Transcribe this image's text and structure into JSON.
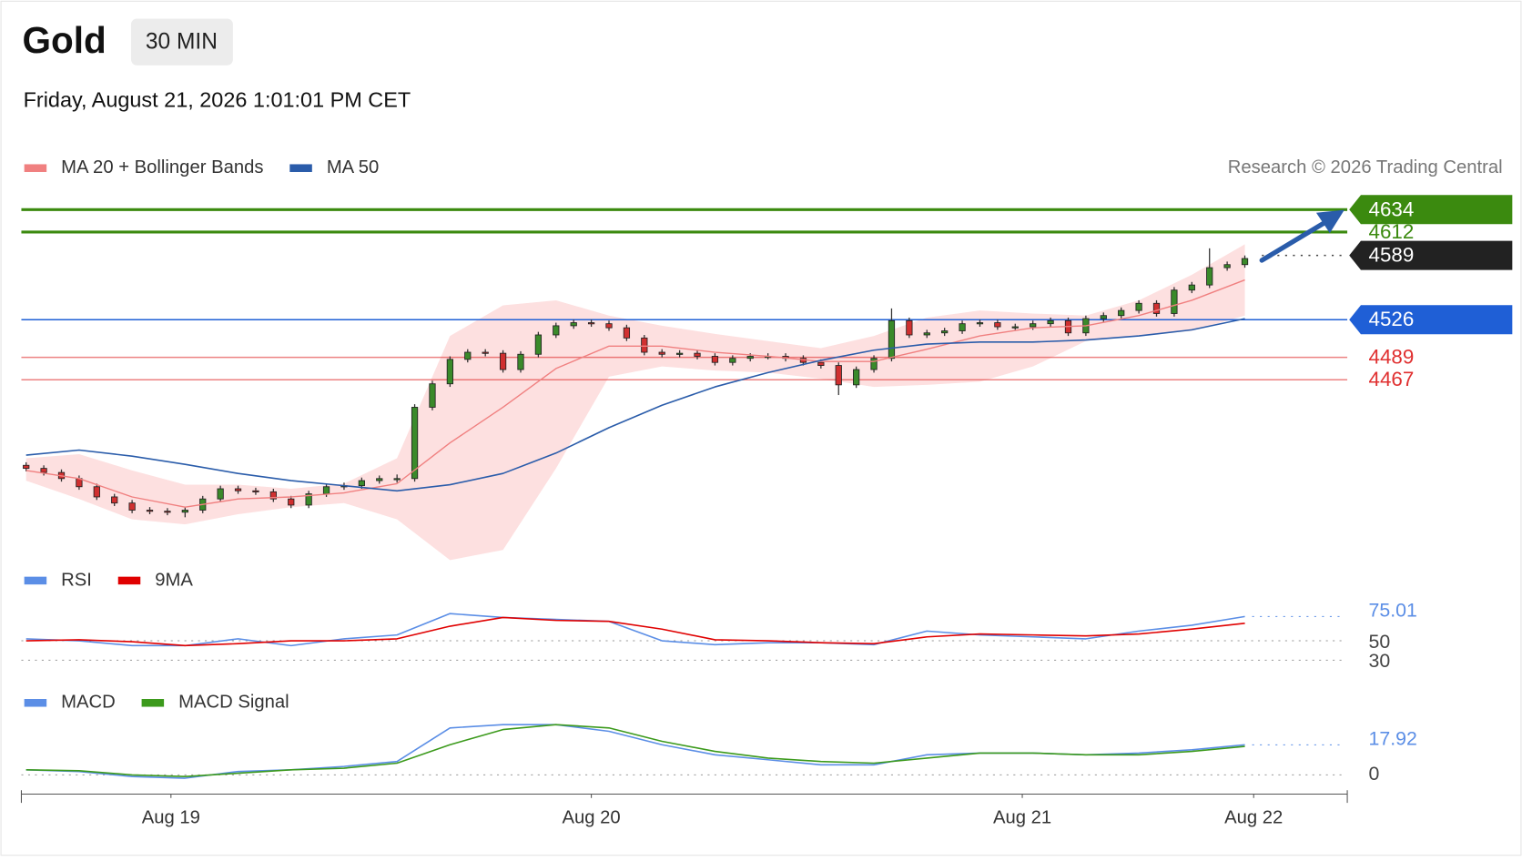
{
  "chart_data": [
    {
      "type": "candlestick",
      "title": "Gold",
      "timeframe": "30 MIN",
      "subtitle": "Friday, August 21, 2026 1:01:01 PM CET",
      "credit": "Research © 2026 Trading Central",
      "xlim": [
        -0.27,
        74.8
      ],
      "ylim": [
        4287,
        4649
      ],
      "xticks": [
        {
          "value": 8.2,
          "label": "Aug 19"
        },
        {
          "value": 32,
          "label": "Aug 20"
        },
        {
          "value": 56.4,
          "label": "Aug 21"
        },
        {
          "value": 69.5,
          "label": "Aug 22"
        }
      ],
      "up_color": "#3a8a2a",
      "down_color": "#d03030",
      "candles": [
        [
          4383,
          4386,
          4377,
          4380
        ],
        [
          4380,
          4383,
          4373,
          4376
        ],
        [
          4376,
          4379,
          4367,
          4370
        ],
        [
          4370,
          4373,
          4359,
          4362
        ],
        [
          4362,
          4365,
          4349,
          4352
        ],
        [
          4352,
          4355,
          4343,
          4346
        ],
        [
          4346,
          4349,
          4336,
          4339
        ],
        [
          4339,
          4342,
          4335,
          4338
        ],
        [
          4338,
          4341,
          4334,
          4337
        ],
        [
          4337,
          4342,
          4332,
          4339
        ],
        [
          4339,
          4353,
          4336,
          4350
        ],
        [
          4350,
          4363,
          4347,
          4360
        ],
        [
          4360,
          4363,
          4355,
          4358
        ],
        [
          4358,
          4361,
          4354,
          4357
        ],
        [
          4357,
          4360,
          4347,
          4350
        ],
        [
          4350,
          4353,
          4341,
          4344
        ],
        [
          4344,
          4358,
          4341,
          4355
        ],
        [
          4355,
          4365,
          4352,
          4362
        ],
        [
          4362,
          4366,
          4359,
          4363
        ],
        [
          4363,
          4371,
          4360,
          4368
        ],
        [
          4368,
          4373,
          4365,
          4370
        ],
        [
          4370,
          4374,
          4366,
          4370
        ],
        [
          4370,
          4443,
          4367,
          4440
        ],
        [
          4440,
          4466,
          4437,
          4463
        ],
        [
          4463,
          4490,
          4460,
          4487
        ],
        [
          4487,
          4497,
          4484,
          4494
        ],
        [
          4494,
          4497,
          4490,
          4493
        ],
        [
          4493,
          4496,
          4474,
          4477
        ],
        [
          4477,
          4495,
          4474,
          4492
        ],
        [
          4492,
          4514,
          4489,
          4511
        ],
        [
          4511,
          4523,
          4508,
          4520
        ],
        [
          4520,
          4526,
          4517,
          4523
        ],
        [
          4523,
          4526,
          4519,
          4522
        ],
        [
          4522,
          4525,
          4515,
          4518
        ],
        [
          4518,
          4521,
          4505,
          4508
        ],
        [
          4508,
          4511,
          4491,
          4494
        ],
        [
          4494,
          4497,
          4489,
          4492
        ],
        [
          4492,
          4496,
          4489,
          4493
        ],
        [
          4493,
          4496,
          4487,
          4490
        ],
        [
          4490,
          4493,
          4481,
          4484
        ],
        [
          4484,
          4491,
          4481,
          4488
        ],
        [
          4488,
          4493,
          4485,
          4490
        ],
        [
          4490,
          4493,
          4487,
          4490
        ],
        [
          4490,
          4493,
          4485,
          4488
        ],
        [
          4488,
          4491,
          4481,
          4484
        ],
        [
          4484,
          4487,
          4478,
          4481
        ],
        [
          4481,
          4484,
          4452,
          4462
        ],
        [
          4462,
          4480,
          4459,
          4477
        ],
        [
          4477,
          4491,
          4474,
          4488
        ],
        [
          4488,
          4537,
          4485,
          4525
        ],
        [
          4525,
          4528,
          4508,
          4511
        ],
        [
          4511,
          4516,
          4508,
          4513
        ],
        [
          4513,
          4518,
          4510,
          4515
        ],
        [
          4515,
          4525,
          4512,
          4522
        ],
        [
          4522,
          4526,
          4519,
          4523
        ],
        [
          4523,
          4526,
          4516,
          4519
        ],
        [
          4519,
          4522,
          4516,
          4519
        ],
        [
          4519,
          4525,
          4516,
          4522
        ],
        [
          4522,
          4528,
          4519,
          4525
        ],
        [
          4525,
          4528,
          4510,
          4513
        ],
        [
          4513,
          4530,
          4510,
          4527
        ],
        [
          4527,
          4533,
          4524,
          4530
        ],
        [
          4530,
          4538,
          4527,
          4535
        ],
        [
          4535,
          4545,
          4532,
          4542
        ],
        [
          4542,
          4545,
          4529,
          4532
        ],
        [
          4532,
          4558,
          4529,
          4555
        ],
        [
          4555,
          4563,
          4552,
          4560
        ],
        [
          4560,
          4596,
          4557,
          4577
        ],
        [
          4577,
          4583,
          4574,
          4580
        ],
        [
          4580,
          4589,
          4577,
          4586
        ]
      ],
      "x": [
        0,
        3,
        6,
        9,
        12,
        15,
        18,
        21,
        24,
        27,
        30,
        33,
        36,
        39,
        42,
        45,
        48,
        51,
        54,
        57,
        60,
        63,
        66,
        69
      ],
      "series": [
        {
          "name": "MA 20 + Bollinger Bands",
          "color": "#f08080",
          "band_color": "#fde0e0",
          "values": [
            4378,
            4370,
            4352,
            4342,
            4350,
            4352,
            4356,
            4365,
            4405,
            4440,
            4478,
            4500,
            4500,
            4494,
            4490,
            4485,
            4485,
            4497,
            4510,
            4518,
            4520,
            4530,
            4545,
            4565
          ],
          "upper": [
            4390,
            4394,
            4378,
            4364,
            4364,
            4360,
            4365,
            4390,
            4510,
            4540,
            4545,
            4530,
            4520,
            4512,
            4505,
            4498,
            4510,
            4528,
            4535,
            4532,
            4530,
            4545,
            4570,
            4600
          ],
          "lower": [
            4368,
            4350,
            4330,
            4325,
            4335,
            4342,
            4346,
            4330,
            4290,
            4300,
            4380,
            4470,
            4480,
            4476,
            4474,
            4468,
            4460,
            4462,
            4465,
            4480,
            4505,
            4510,
            4515,
            4530
          ]
        },
        {
          "name": "MA 50",
          "color": "#2a5caa",
          "values": [
            4393,
            4398,
            4392,
            4384,
            4375,
            4368,
            4363,
            4358,
            4364,
            4375,
            4395,
            4420,
            4442,
            4460,
            4474,
            4486,
            4496,
            4502,
            4504,
            4504,
            4506,
            4510,
            4516,
            4527
          ]
        }
      ],
      "levels": [
        {
          "value": 4634,
          "color": "#3b8a0f",
          "boxed": true,
          "line": "solid"
        },
        {
          "value": 4612,
          "color": "#3b8a0f",
          "boxed": false,
          "line": "solid"
        },
        {
          "value": 4589,
          "color": "#222222",
          "boxed": true,
          "line": "dotted"
        },
        {
          "value": 4526,
          "color": "#1f5fd6",
          "boxed": true,
          "line": "solid"
        },
        {
          "value": 4489,
          "color": "#e03030",
          "boxed": false,
          "line": "solid"
        },
        {
          "value": 4467,
          "color": "#e03030",
          "boxed": false,
          "line": "solid"
        }
      ]
    },
    {
      "type": "line",
      "xlim": [
        -0.27,
        74.8
      ],
      "ylim": [
        20,
        90
      ],
      "yticks": [
        30,
        50
      ],
      "last_value": 75.01,
      "last_color": "#5b8ee6",
      "x": [
        0,
        3,
        6,
        9,
        12,
        15,
        18,
        21,
        24,
        27,
        30,
        33,
        36,
        39,
        42,
        45,
        48,
        51,
        54,
        57,
        60,
        63,
        66,
        69
      ],
      "series": [
        {
          "name": "RSI",
          "color": "#5b8ee6",
          "values": [
            52,
            50,
            45,
            45,
            52,
            45,
            52,
            56,
            78,
            74,
            72,
            70,
            50,
            46,
            48,
            48,
            46,
            60,
            56,
            54,
            52,
            60,
            66,
            75.01
          ]
        },
        {
          "name": "9MA",
          "color": "#e00000",
          "values": [
            50,
            51,
            49,
            45,
            47,
            50,
            50,
            52,
            65,
            74,
            71,
            70,
            62,
            51,
            50,
            48,
            47,
            54,
            57,
            56,
            55,
            57,
            62,
            68
          ]
        }
      ]
    },
    {
      "type": "line",
      "xlim": [
        -0.27,
        74.8
      ],
      "ylim": [
        -8,
        36
      ],
      "yticks": [
        0
      ],
      "last_value": 17.92,
      "last_color": "#5b8ee6",
      "x": [
        0,
        3,
        6,
        9,
        12,
        15,
        18,
        21,
        24,
        27,
        30,
        33,
        36,
        39,
        42,
        45,
        48,
        51,
        54,
        57,
        60,
        63,
        66,
        69
      ],
      "series": [
        {
          "name": "MACD",
          "color": "#5b8ee6",
          "values": [
            3,
            2,
            -1,
            -2,
            2,
            3,
            5,
            8,
            28,
            30,
            30,
            26,
            18,
            12,
            9,
            6,
            6,
            12,
            13,
            13,
            12,
            13,
            15,
            17.92
          ]
        },
        {
          "name": "MACD Signal",
          "color": "#3c9a1c",
          "values": [
            3,
            2.5,
            0,
            -1,
            1,
            3,
            4,
            7,
            18,
            27,
            30,
            28,
            20,
            14,
            10,
            8,
            7,
            10,
            13,
            13,
            12,
            12,
            14,
            17
          ]
        }
      ]
    }
  ]
}
